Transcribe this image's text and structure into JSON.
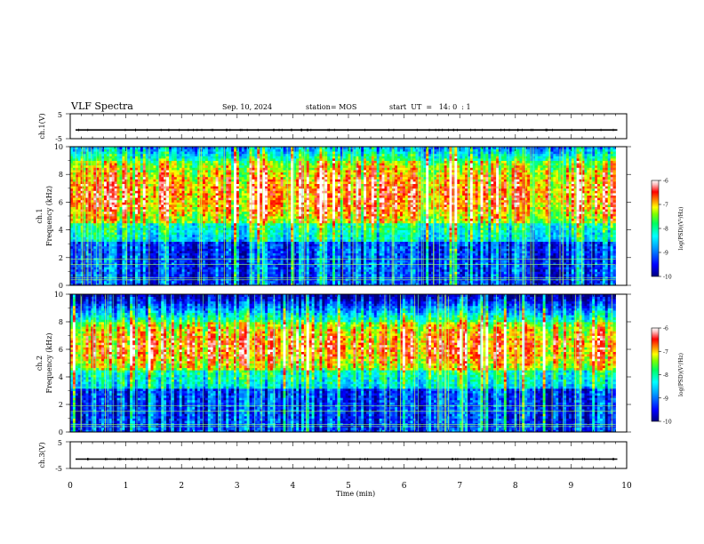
{
  "header": {
    "title": "VLF Spectra",
    "date": "Sep. 10, 2024",
    "station": "station= MOS",
    "start": "start  UT  =   14: 0  : 1"
  },
  "chart_data": [
    {
      "type": "line",
      "panel": "ch1-waveform",
      "ylabel": "ch.1(V)",
      "yticks": [
        "5",
        "-5"
      ],
      "ylim": [
        -5,
        5
      ],
      "xlim": [
        0,
        10
      ],
      "series_level": -1.5
    },
    {
      "type": "heatmap",
      "panel": "ch1-spectrogram",
      "ylabel": [
        "ch.1",
        "Frequency (kHz)"
      ],
      "ylim": [
        0,
        10
      ],
      "yticks": [
        "0",
        "2",
        "4",
        "6",
        "8",
        "10"
      ],
      "xlim": [
        0,
        10
      ],
      "data_end_min": 9.8,
      "intense_band_khz": [
        4.5,
        9.0
      ],
      "colorbar": {
        "label": "log(PSD)(V²/Hz)",
        "range": [
          -10,
          -6
        ],
        "ticks": [
          "-6",
          "-7",
          "-8",
          "-9",
          "-10"
        ]
      }
    },
    {
      "type": "heatmap",
      "panel": "ch2-spectrogram",
      "ylabel": [
        "ch.2",
        "Frequency (kHz)"
      ],
      "ylim": [
        0,
        10
      ],
      "yticks": [
        "0",
        "2",
        "4",
        "6",
        "8",
        "10"
      ],
      "xlim": [
        0,
        10
      ],
      "data_end_min": 9.8,
      "intense_band_khz": [
        4.5,
        8.0
      ],
      "colorbar": {
        "label": "log(PSD)(V²/Hz)",
        "range": [
          -10,
          -6
        ],
        "ticks": [
          "-6",
          "-7",
          "-8",
          "-9",
          "-10"
        ]
      }
    },
    {
      "type": "line",
      "panel": "ch3-waveform",
      "ylabel": "ch.3(V)",
      "yticks": [
        "5",
        "-5"
      ],
      "ylim": [
        -5,
        5
      ],
      "xlim": [
        0,
        10
      ],
      "series_level": -1.5
    }
  ],
  "xaxis": {
    "label": "Time  (min)",
    "ticks": [
      "0",
      "1",
      "2",
      "3",
      "4",
      "5",
      "6",
      "7",
      "8",
      "9",
      "10"
    ]
  },
  "colors": [
    "#000080",
    "#0000ff",
    "#00a0ff",
    "#00ffff",
    "#00ff80",
    "#60ff00",
    "#ffff00",
    "#ff8000",
    "#ff0000",
    "#ffd0d0",
    "#ffffff"
  ]
}
